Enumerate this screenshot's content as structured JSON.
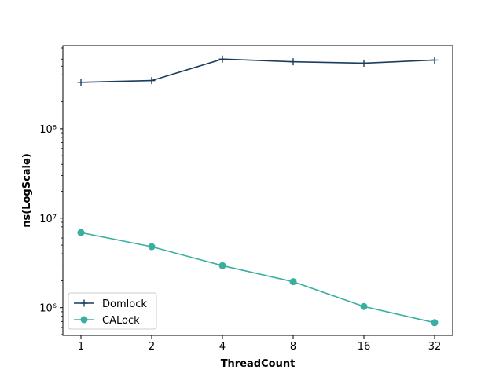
{
  "chart_data": {
    "type": "line",
    "title": "",
    "xlabel": "ThreadCount",
    "ylabel": "ns(LogScale)",
    "x_scale": "log2",
    "y_scale": "log10",
    "categories": [
      "1",
      "2",
      "4",
      "8",
      "16",
      "32"
    ],
    "x": [
      1,
      2,
      4,
      8,
      16,
      32
    ],
    "ylim": [
      490000,
      850000000
    ],
    "y_ticks": [
      {
        "value": 1000000,
        "label": "10⁶"
      },
      {
        "value": 10000000,
        "label": "10⁷"
      },
      {
        "value": 100000000,
        "label": "10⁸"
      }
    ],
    "grid": false,
    "legend_position": "lower-left",
    "series": [
      {
        "name": "Domlock",
        "color": "#1a3d5c",
        "marker": "plus",
        "values": [
          330000000,
          345000000,
          600000000,
          560000000,
          540000000,
          585000000
        ]
      },
      {
        "name": "CALock",
        "color": "#3aafa0",
        "marker": "circle",
        "values": [
          6900000,
          4800000,
          2950000,
          1950000,
          1030000,
          680000
        ]
      }
    ]
  }
}
